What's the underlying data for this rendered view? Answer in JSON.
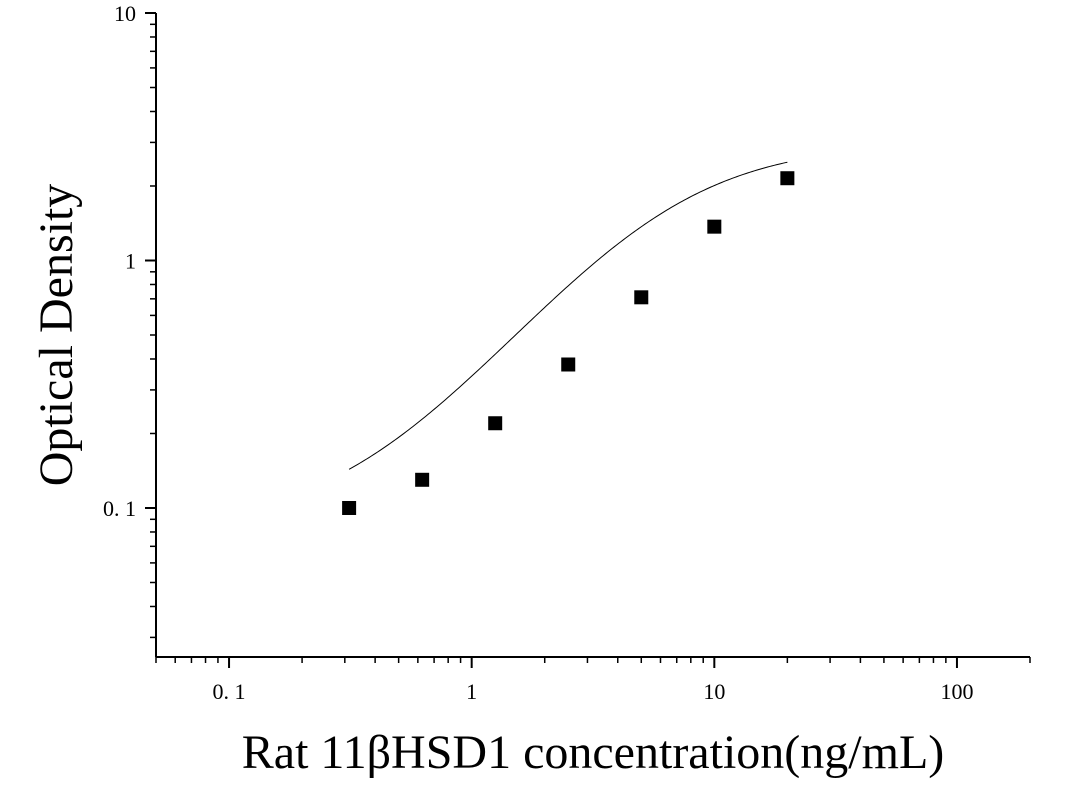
{
  "chart_data": {
    "type": "scatter",
    "title": "",
    "xlabel": "Rat 11βHSD1 concentration(ng/mL)",
    "ylabel": "Optical Density",
    "xscale": "log",
    "yscale": "log",
    "xlim": [
      0.05,
      200
    ],
    "ylim": [
      0.025,
      10
    ],
    "xticks": [
      0.1,
      1,
      10,
      100
    ],
    "xtick_labels": [
      "0. 1",
      "1",
      "10",
      "100"
    ],
    "yticks": [
      0.1,
      1,
      10
    ],
    "ytick_labels": [
      "0. 1",
      "1",
      "10"
    ],
    "grid": false,
    "legend": "none",
    "marker": "square",
    "marker_color": "#000000",
    "fit_curve": "4-parameter logistic",
    "series": [
      {
        "x": [
          0.3125,
          0.625,
          1.25,
          2.5,
          5,
          10,
          20
        ],
        "y": [
          0.1,
          0.13,
          0.22,
          0.38,
          0.71,
          1.37,
          2.15
        ]
      }
    ],
    "fit": {
      "bottom": 0.082,
      "top": 3.0,
      "ec50": 6.0,
      "hill": 1.3,
      "x_range": [
        0.3125,
        20
      ]
    }
  }
}
